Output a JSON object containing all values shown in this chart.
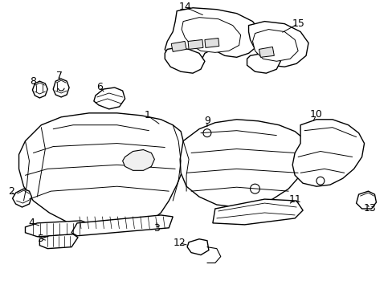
{
  "background_color": "#ffffff",
  "line_color": "#000000",
  "figsize": [
    4.89,
    3.6
  ],
  "dpi": 100,
  "font_size": 9,
  "label_color": "#000000"
}
